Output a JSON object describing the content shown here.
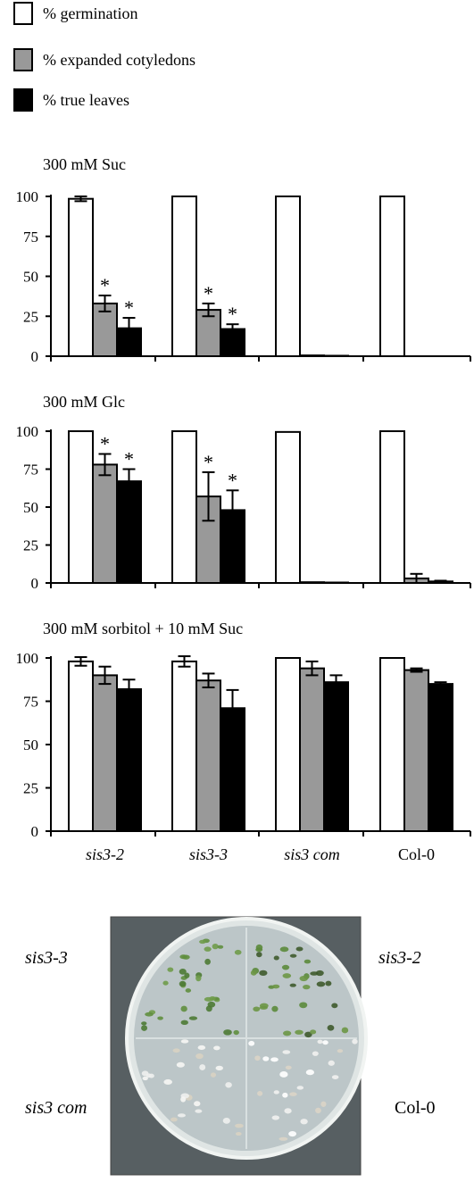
{
  "legend": [
    {
      "label": "% germination",
      "color": "#ffffff"
    },
    {
      "label": "% expanded cotyledons",
      "color": "#999999"
    },
    {
      "label": "% true leaves",
      "color": "#000000"
    }
  ],
  "chart_data": [
    {
      "type": "bar",
      "title": "300 mM Suc",
      "categories": [
        "sis3-2",
        "sis3-3",
        "sis3 com",
        "Col-0"
      ],
      "ylim": [
        0,
        100
      ],
      "yticks": [
        0,
        25,
        50,
        75,
        100
      ],
      "series": [
        {
          "name": "% germination",
          "values": [
            98.5,
            100,
            100,
            100
          ],
          "errors": [
            1.5,
            0,
            0,
            0
          ]
        },
        {
          "name": "% expanded cotyledons",
          "values": [
            33,
            29,
            0.5,
            0
          ],
          "errors": [
            5,
            4,
            0,
            0
          ],
          "significance": [
            "*",
            "*",
            "",
            ""
          ]
        },
        {
          "name": "% true leaves",
          "values": [
            17.5,
            17,
            0.3,
            0
          ],
          "errors": [
            6.5,
            3,
            0,
            0
          ],
          "significance": [
            "*",
            "*",
            "",
            ""
          ]
        }
      ]
    },
    {
      "type": "bar",
      "title": "300 mM Glc",
      "categories": [
        "sis3-2",
        "sis3-3",
        "sis3 com",
        "Col-0"
      ],
      "ylim": [
        0,
        100
      ],
      "yticks": [
        0,
        25,
        50,
        75,
        100
      ],
      "series": [
        {
          "name": "% germination",
          "values": [
            100,
            100,
            99.5,
            100
          ],
          "errors": [
            0,
            0,
            0,
            0
          ]
        },
        {
          "name": "% expanded cotyledons",
          "values": [
            78,
            57,
            0.5,
            3
          ],
          "errors": [
            7,
            16,
            0,
            3
          ],
          "significance": [
            "*",
            "*",
            "",
            ""
          ]
        },
        {
          "name": "% true leaves",
          "values": [
            67,
            48,
            0.3,
            1
          ],
          "errors": [
            8,
            13,
            0,
            0.5
          ],
          "significance": [
            "*",
            "*",
            "",
            ""
          ]
        }
      ]
    },
    {
      "type": "bar",
      "title": "300 mM sorbitol + 10 mM Suc",
      "categories": [
        "sis3-2",
        "sis3-3",
        "sis3 com",
        "Col-0"
      ],
      "ylim": [
        0,
        100
      ],
      "yticks": [
        0,
        25,
        50,
        75,
        100
      ],
      "series": [
        {
          "name": "% germination",
          "values": [
            98,
            98,
            100,
            100
          ],
          "errors": [
            2.5,
            3,
            0,
            0
          ]
        },
        {
          "name": "% expanded cotyledons",
          "values": [
            90,
            87,
            94,
            93
          ],
          "errors": [
            5,
            4,
            4,
            1
          ]
        },
        {
          "name": "% true leaves",
          "values": [
            82,
            71,
            86,
            85
          ],
          "errors": [
            5.5,
            10.5,
            4,
            1
          ]
        }
      ]
    }
  ],
  "photo": {
    "labels": {
      "top_left": "sis3-3",
      "top_right": "sis3-2",
      "bottom_left": "sis3 com",
      "bottom_right": "Col-0"
    }
  }
}
